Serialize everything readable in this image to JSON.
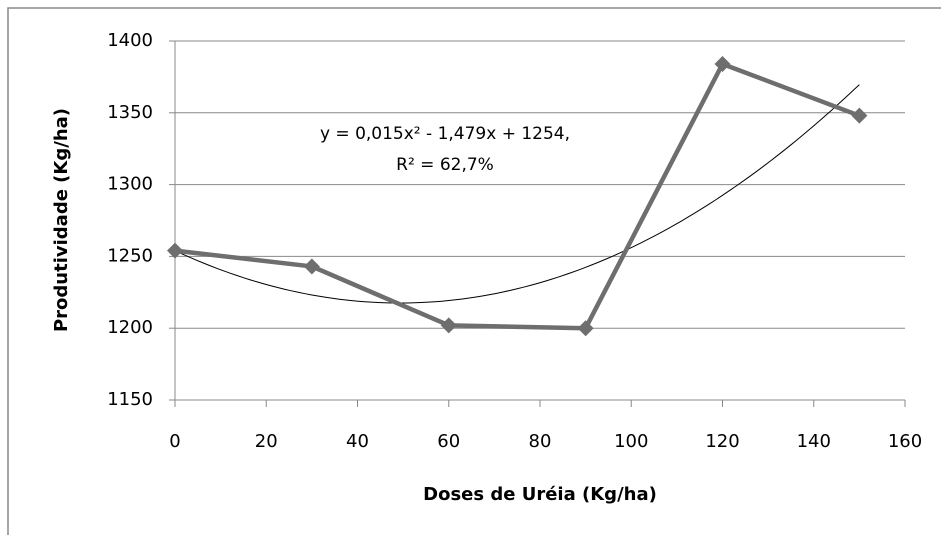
{
  "chart_data": {
    "type": "line",
    "x": [
      0,
      30,
      60,
      90,
      120,
      150
    ],
    "series": [
      {
        "name": null,
        "color": "#6e6e6e",
        "values": [
          1254,
          1243,
          1202,
          1200,
          1384,
          1348
        ]
      }
    ],
    "trendline": {
      "type": "polynomial",
      "coefficients": [
        0.015,
        -1.479,
        1254
      ],
      "color": "#000000"
    },
    "annotations": [
      "y = 0,015x² - 1,479x + 1254,",
      "R² = 62,7%"
    ],
    "xlabel": "Doses de Uréia (Kg/ha)",
    "ylabel": "Produtividade (Kg/ha)",
    "xlim": [
      0,
      160
    ],
    "xticks": [
      0,
      20,
      40,
      60,
      80,
      100,
      120,
      140,
      160
    ],
    "ylim": [
      1150,
      1400
    ],
    "yticks": [
      1150,
      1200,
      1250,
      1300,
      1350,
      1400
    ],
    "grid": true
  }
}
